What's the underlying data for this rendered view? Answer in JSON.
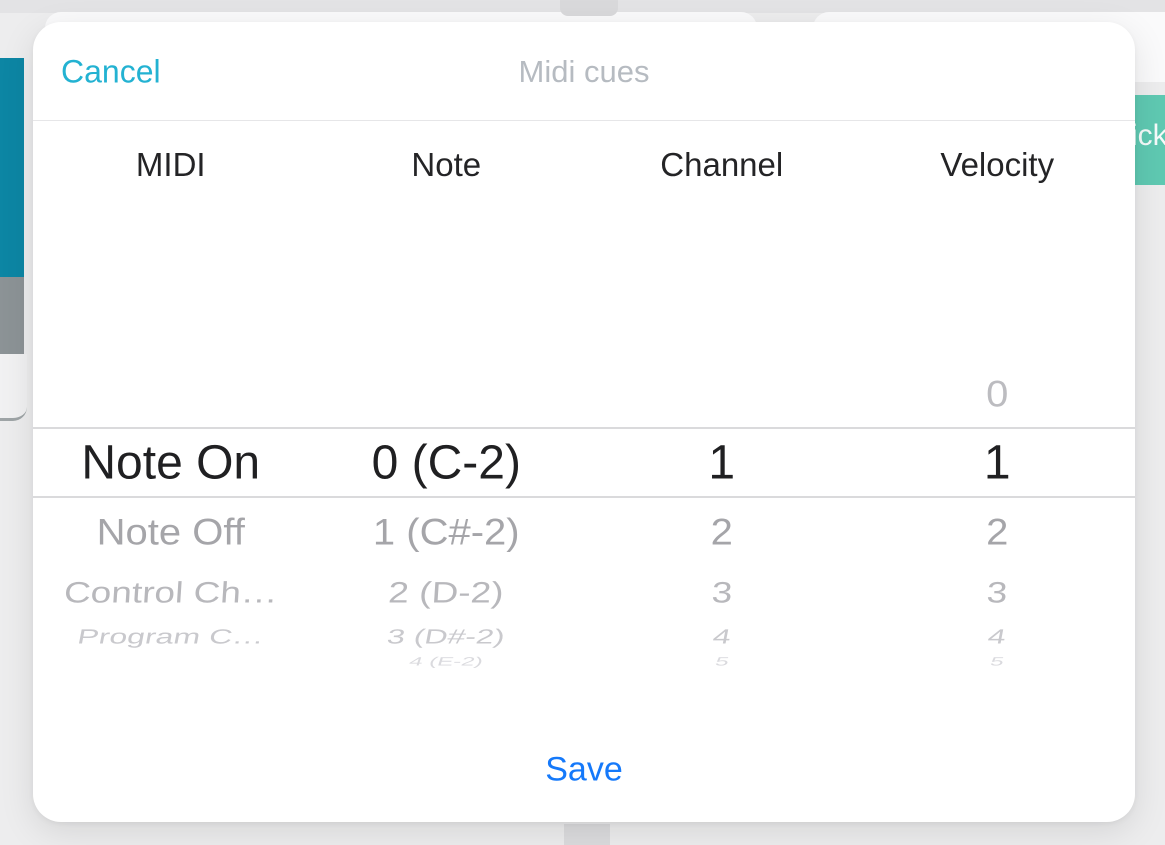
{
  "modal": {
    "title": "Midi cues",
    "cancel_label": "Cancel",
    "save_label": "Save",
    "columns": [
      {
        "header": "MIDI",
        "above": [],
        "selected": "Note On",
        "below": [
          "Note Off",
          "Control Ch…",
          "Program C…"
        ]
      },
      {
        "header": "Note",
        "above": [],
        "selected": "0 (C-2)",
        "below": [
          "1 (C#-2)",
          "2 (D-2)",
          "3 (D#-2)",
          "4 (E-2)"
        ]
      },
      {
        "header": "Channel",
        "above": [],
        "selected": "1",
        "below": [
          "2",
          "3",
          "4",
          "5"
        ]
      },
      {
        "header": "Velocity",
        "above": [
          "0"
        ],
        "selected": "1",
        "below": [
          "2",
          "3",
          "4",
          "5"
        ]
      }
    ]
  },
  "background": {
    "track_tab_text": "ick"
  },
  "colors": {
    "cancel_accent": "#23b2d2",
    "save_accent": "#1579fa",
    "title_gray": "#b6bbc1",
    "teal_bar": "#0d86a4",
    "gray_bar": "#8c9396",
    "track_tab": "#5fc9b2",
    "selection_line": "#dadadc"
  }
}
